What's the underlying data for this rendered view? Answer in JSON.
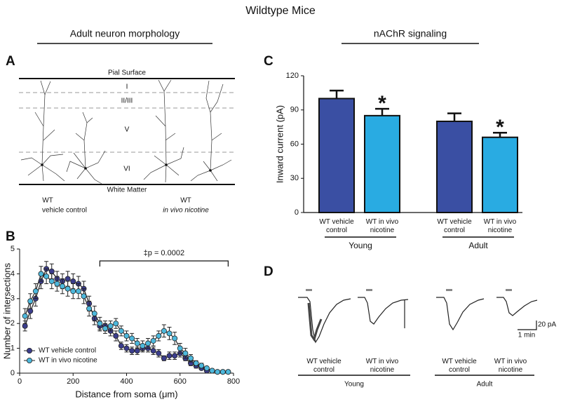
{
  "title": "Wildtype Mice",
  "sections": [
    "Adult neuron morphology",
    "nAChR signaling"
  ],
  "panel_labels": [
    "A",
    "B",
    "C",
    "D"
  ],
  "panel_a": {
    "top_label": "Pial Surface",
    "bottom_label": "White Matter",
    "layers": [
      "I",
      "II/III",
      "V",
      "VI"
    ],
    "groups": [
      {
        "line1": "WT",
        "line2": "vehicle control"
      },
      {
        "line1": "WT",
        "line2": "in vivo nicotine"
      }
    ]
  },
  "panel_d": {
    "conditions": [
      "WT vehicle control",
      "WT in vivo nicotine",
      "WT vehicle control",
      "WT in vivo nicotine"
    ],
    "groups": [
      "Young",
      "Adult"
    ],
    "scale_y": "20 pA",
    "scale_x": "1 min"
  },
  "chart_data": [
    {
      "type": "line",
      "x_label": "Distance from soma (μm)",
      "y_label": "Number of intersections",
      "x": [
        20,
        40,
        60,
        80,
        100,
        120,
        140,
        160,
        180,
        200,
        220,
        240,
        260,
        280,
        300,
        320,
        340,
        360,
        380,
        400,
        420,
        440,
        460,
        480,
        500,
        520,
        540,
        560,
        580,
        600,
        620,
        640,
        660,
        680,
        700,
        720,
        740,
        760,
        780
      ],
      "series": [
        {
          "name": "WT vehicle control",
          "color": "#3b3d8c",
          "values": [
            1.9,
            2.5,
            3.0,
            3.7,
            4.2,
            4.1,
            3.8,
            3.7,
            3.8,
            3.7,
            3.6,
            3.4,
            2.8,
            2.2,
            1.9,
            1.9,
            1.7,
            1.5,
            1.1,
            1.0,
            0.9,
            0.9,
            1.0,
            1.0,
            0.9,
            0.8,
            0.6,
            0.7,
            0.7,
            0.8,
            0.6,
            0.4,
            0.3,
            0.2,
            0.1,
            0.1,
            0.05,
            0.05,
            0.05
          ],
          "errors": [
            0.2,
            0.3,
            0.3,
            0.3,
            0.3,
            0.3,
            0.3,
            0.3,
            0.3,
            0.3,
            0.3,
            0.3,
            0.3,
            0.25,
            0.2,
            0.2,
            0.2,
            0.2,
            0.15,
            0.15,
            0.15,
            0.15,
            0.15,
            0.15,
            0.15,
            0.15,
            0.1,
            0.15,
            0.15,
            0.15,
            0.1,
            0.1,
            0.1,
            0.05,
            0.05,
            0.05,
            0.05,
            0.05,
            0.05
          ]
        },
        {
          "name": "WT in vivo nicotine",
          "color": "#4db8dc",
          "values": [
            2.3,
            2.9,
            3.3,
            4.0,
            3.9,
            3.7,
            3.6,
            3.5,
            3.4,
            3.3,
            3.3,
            3.1,
            2.6,
            2.4,
            2.0,
            1.8,
            1.9,
            2.0,
            1.7,
            1.5,
            1.4,
            1.2,
            1.1,
            1.2,
            1.3,
            1.5,
            1.7,
            1.6,
            1.4,
            1.0,
            0.8,
            0.6,
            0.4,
            0.3,
            0.2,
            0.1,
            0.05,
            0.05,
            0.05
          ],
          "errors": [
            0.3,
            0.3,
            0.3,
            0.3,
            0.3,
            0.3,
            0.3,
            0.3,
            0.3,
            0.3,
            0.3,
            0.3,
            0.3,
            0.3,
            0.25,
            0.2,
            0.2,
            0.2,
            0.2,
            0.2,
            0.2,
            0.2,
            0.2,
            0.2,
            0.2,
            0.2,
            0.25,
            0.25,
            0.25,
            0.2,
            0.2,
            0.15,
            0.1,
            0.1,
            0.05,
            0.05,
            0.05,
            0.05,
            0.05
          ]
        }
      ],
      "xlim": [
        0,
        800
      ],
      "xticks": [
        0,
        200,
        400,
        600,
        800
      ],
      "ylim": [
        0,
        5
      ],
      "yticks": [
        0,
        1,
        2,
        3,
        4,
        5
      ],
      "legend": "lower left",
      "annotation": {
        "text": "‡p = 0.0002",
        "x_range": [
          300,
          780
        ]
      }
    },
    {
      "type": "bar",
      "y_label": "Inward current (pA)",
      "categories": [
        "WT vehicle control",
        "WT in vivo nicotine",
        "WT vehicle control",
        "WT in vivo nicotine"
      ],
      "groups": [
        "Young",
        "Adult"
      ],
      "values": [
        100,
        85,
        80,
        66
      ],
      "errors": [
        7,
        6,
        7,
        4
      ],
      "colors": [
        "#3a4fa3",
        "#29abe2",
        "#3a4fa3",
        "#29abe2"
      ],
      "annotations": [
        null,
        "*",
        null,
        "*"
      ],
      "ylim": [
        0,
        120
      ],
      "yticks": [
        0,
        30,
        60,
        90,
        120
      ]
    }
  ]
}
